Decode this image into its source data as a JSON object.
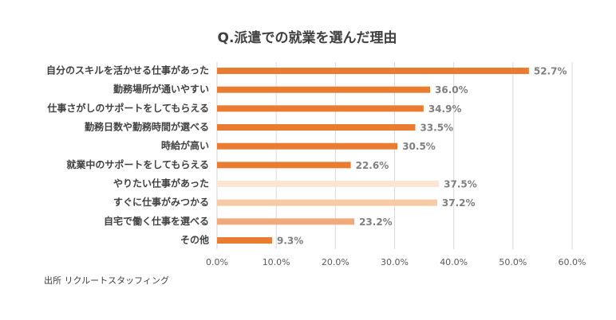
{
  "chart_data": {
    "type": "bar",
    "orientation": "horizontal",
    "title": "Q.派遣での就業を選んだ理由",
    "categories": [
      "自分のスキルを活かせる仕事があった",
      "勤務場所が通いやすい",
      "仕事さがしのサポートをしてもらえる",
      "勤務日数や勤務時間が選べる",
      "時給が高い",
      "就業中のサポートをしてもらえる",
      "やりたい仕事があった",
      "すぐに仕事がみつかる",
      "自宅で働く仕事を選べる",
      "その他"
    ],
    "values": [
      52.7,
      36.0,
      34.9,
      33.5,
      30.5,
      22.6,
      37.5,
      37.2,
      23.2,
      9.3
    ],
    "value_labels": [
      "52.7%",
      "36.0%",
      "34.9%",
      "33.5%",
      "30.5%",
      "22.6%",
      "37.5%",
      "37.2%",
      "23.2%",
      "9.3%"
    ],
    "colors": [
      "#e97c30",
      "#e97c30",
      "#e97c30",
      "#e97c30",
      "#e97c30",
      "#e97c30",
      "#fbe5d3",
      "#f7caa6",
      "#f1aa7c",
      "#e97c30"
    ],
    "xlim": [
      0,
      60
    ],
    "xticks": [
      {
        "value": 0,
        "label": "0.0%"
      },
      {
        "value": 10,
        "label": "10.0%"
      },
      {
        "value": 20,
        "label": "20.0%"
      },
      {
        "value": 30,
        "label": "30.0%"
      },
      {
        "value": 40,
        "label": "40.0%"
      },
      {
        "value": 50,
        "label": "50.0%"
      },
      {
        "value": 60,
        "label": "60.0%"
      }
    ],
    "grid": true,
    "source": "出所 リクルートスタッフィング"
  }
}
